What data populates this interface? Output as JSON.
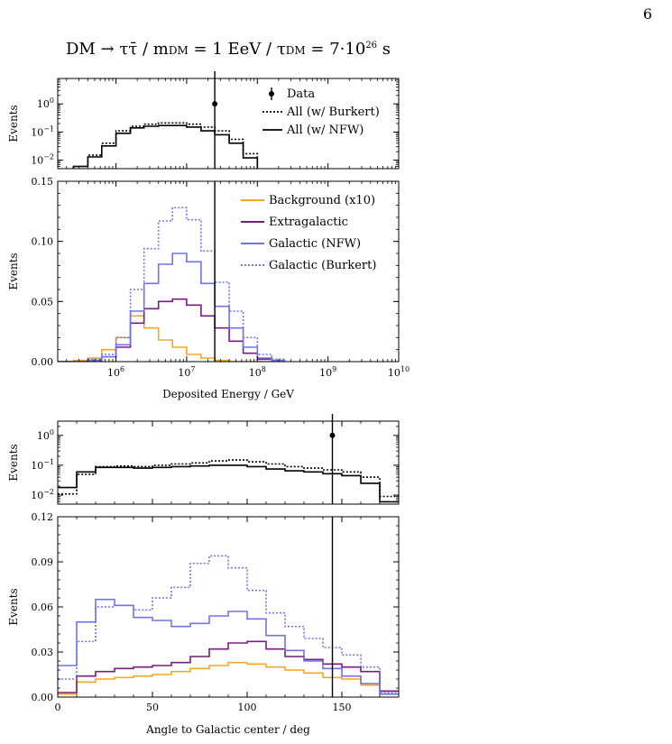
{
  "page_number": "6",
  "title": {
    "part1": "DM → ττ̄",
    "sep1": " / ",
    "m": "m",
    "m_sub": "DM",
    "m_val": " = 1 EeV",
    "sep2": " / ",
    "tau": "τ",
    "tau_sub": "DM",
    "tau_val": " = 7·10",
    "tau_exp": "26",
    "tau_unit": " s"
  },
  "colors": {
    "background": "#f5a623",
    "extragalactic": "#7b1b7e",
    "galactic": "#6f73e8",
    "data": "#000000"
  },
  "legends": {
    "top": [
      "Data",
      "All (w/ Burkert)",
      "All (w/ NFW)"
    ],
    "main": [
      "Background (x10)",
      "Extragalactic",
      "Galactic (NFW)",
      "Galactic (Burkert)"
    ]
  },
  "chart_data": [
    {
      "id": "energy-log",
      "type": "line",
      "xscale": "log",
      "yscale": "log",
      "xlim": [
        150000.0,
        10000000000.0
      ],
      "ylim": [
        0.005,
        8
      ],
      "ylabel": "Events",
      "yticks": [
        {
          "v": 1,
          "base": "10",
          "exp": "0"
        },
        {
          "v": 0.1,
          "base": "10",
          "exp": "−1"
        },
        {
          "v": 0.01,
          "base": "10",
          "exp": "−2"
        }
      ],
      "bin_edges": [
        150000,
        250000,
        400000,
        630000,
        1000000,
        1600000,
        2500000,
        4000000,
        6300000,
        10000000,
        16000000,
        25000000,
        40000000,
        63000000,
        100000000,
        160000000
      ],
      "series": [
        {
          "name": "All (w/ Burkert)",
          "style": "dotted",
          "values": [
            0.004,
            0.006,
            0.015,
            0.04,
            0.11,
            0.16,
            0.19,
            0.21,
            0.21,
            0.19,
            0.15,
            0.11,
            0.055,
            0.017,
            0.004
          ]
        },
        {
          "name": "All (w/ NFW)",
          "style": "solid",
          "values": [
            0.004,
            0.006,
            0.013,
            0.032,
            0.09,
            0.14,
            0.16,
            0.17,
            0.17,
            0.15,
            0.11,
            0.08,
            0.04,
            0.012,
            0.003
          ]
        }
      ],
      "data_points": [
        {
          "x": 25000000,
          "y": 1
        }
      ]
    },
    {
      "id": "energy-lin",
      "type": "line",
      "xscale": "log",
      "yscale": "linear",
      "xlim": [
        150000.0,
        10000000000.0
      ],
      "ylim": [
        0,
        0.15
      ],
      "xlabel": "Deposited Energy / GeV",
      "ylabel": "Events",
      "xticks": [
        {
          "v": 1000000,
          "base": "10",
          "exp": "6"
        },
        {
          "v": 10000000,
          "base": "10",
          "exp": "7"
        },
        {
          "v": 100000000,
          "base": "10",
          "exp": "8"
        },
        {
          "v": 1000000000,
          "base": "10",
          "exp": "9"
        },
        {
          "v": 10000000000,
          "base": "10",
          "exp": "10"
        }
      ],
      "yticks": [
        {
          "v": 0,
          "label": "0.00"
        },
        {
          "v": 0.05,
          "label": "0.05"
        },
        {
          "v": 0.1,
          "label": "0.10"
        },
        {
          "v": 0.15,
          "label": "0.15"
        }
      ],
      "bin_edges": [
        150000,
        250000,
        400000,
        630000,
        1000000,
        1600000,
        2500000,
        4000000,
        6300000,
        10000000,
        16000000,
        25000000,
        40000000,
        63000000,
        100000000,
        160000000,
        250000000
      ],
      "series": [
        {
          "name": "Background (x10)",
          "style": "solid",
          "values": [
            0.0,
            0.001,
            0.003,
            0.01,
            0.02,
            0.038,
            0.028,
            0.018,
            0.012,
            0.006,
            0.003,
            0.001,
            0.0,
            0.0,
            0.0,
            0.0
          ]
        },
        {
          "name": "Extragalactic",
          "style": "solid",
          "values": [
            0.0,
            0.0,
            0.001,
            0.004,
            0.012,
            0.032,
            0.044,
            0.05,
            0.052,
            0.047,
            0.038,
            0.028,
            0.017,
            0.007,
            0.002,
            0.0
          ]
        },
        {
          "name": "Galactic (NFW)",
          "style": "solid",
          "values": [
            0.0,
            0.0,
            0.001,
            0.004,
            0.014,
            0.042,
            0.065,
            0.081,
            0.09,
            0.083,
            0.065,
            0.046,
            0.028,
            0.012,
            0.003,
            0.001
          ]
        },
        {
          "name": "Galactic (Burkert)",
          "style": "dotted",
          "values": [
            0.0,
            0.0,
            0.002,
            0.006,
            0.02,
            0.06,
            0.094,
            0.117,
            0.128,
            0.118,
            0.092,
            0.066,
            0.042,
            0.02,
            0.006,
            0.002
          ]
        }
      ],
      "data_points": [
        {
          "x": 25000000,
          "y": 1
        }
      ]
    },
    {
      "id": "angle-log",
      "type": "line",
      "xscale": "linear",
      "yscale": "log",
      "xlim": [
        0,
        180
      ],
      "ylim": [
        0.005,
        3
      ],
      "ylabel": "Events",
      "yticks": [
        {
          "v": 1,
          "base": "10",
          "exp": "0"
        },
        {
          "v": 0.1,
          "base": "10",
          "exp": "−1"
        },
        {
          "v": 0.01,
          "base": "10",
          "exp": "−2"
        }
      ],
      "bin_edges": [
        0,
        10,
        20,
        30,
        40,
        50,
        60,
        70,
        80,
        90,
        100,
        110,
        120,
        130,
        140,
        150,
        160,
        170,
        180
      ],
      "series": [
        {
          "name": "All (w/ Burkert)",
          "style": "dotted",
          "values": [
            0.011,
            0.05,
            0.09,
            0.095,
            0.09,
            0.1,
            0.11,
            0.12,
            0.14,
            0.15,
            0.13,
            0.11,
            0.09,
            0.08,
            0.07,
            0.06,
            0.04,
            0.009
          ]
        },
        {
          "name": "All (w/ NFW)",
          "style": "solid",
          "values": [
            0.018,
            0.06,
            0.085,
            0.085,
            0.08,
            0.085,
            0.09,
            0.095,
            0.1,
            0.1,
            0.09,
            0.075,
            0.065,
            0.06,
            0.052,
            0.045,
            0.025,
            0.006
          ]
        }
      ],
      "data_points": [
        {
          "x": 145,
          "y": 1
        }
      ]
    },
    {
      "id": "angle-lin",
      "type": "line",
      "xscale": "linear",
      "yscale": "linear",
      "xlim": [
        0,
        180
      ],
      "ylim": [
        0,
        0.12
      ],
      "xlabel": "Angle to Galactic center / deg",
      "ylabel": "Events",
      "xticks": [
        {
          "v": 0,
          "label": "0"
        },
        {
          "v": 50,
          "label": "50"
        },
        {
          "v": 100,
          "label": "100"
        },
        {
          "v": 150,
          "label": "150"
        }
      ],
      "yticks": [
        {
          "v": 0,
          "label": "0.00"
        },
        {
          "v": 0.03,
          "label": "0.03"
        },
        {
          "v": 0.06,
          "label": "0.06"
        },
        {
          "v": 0.09,
          "label": "0.09"
        },
        {
          "v": 0.12,
          "label": "0.12"
        }
      ],
      "bin_edges": [
        0,
        10,
        20,
        30,
        40,
        50,
        60,
        70,
        80,
        90,
        100,
        110,
        120,
        130,
        140,
        150,
        160,
        170,
        180
      ],
      "series": [
        {
          "name": "Background (x10)",
          "style": "solid",
          "values": [
            0.002,
            0.01,
            0.012,
            0.013,
            0.014,
            0.015,
            0.017,
            0.019,
            0.021,
            0.023,
            0.022,
            0.02,
            0.018,
            0.016,
            0.013,
            0.012,
            0.008,
            0.002
          ]
        },
        {
          "name": "Extragalactic",
          "style": "solid",
          "values": [
            0.003,
            0.014,
            0.017,
            0.019,
            0.02,
            0.021,
            0.023,
            0.027,
            0.032,
            0.036,
            0.037,
            0.032,
            0.027,
            0.025,
            0.022,
            0.02,
            0.017,
            0.004
          ]
        },
        {
          "name": "Galactic (NFW)",
          "style": "solid",
          "values": [
            0.021,
            0.05,
            0.065,
            0.061,
            0.053,
            0.051,
            0.047,
            0.049,
            0.054,
            0.057,
            0.052,
            0.041,
            0.031,
            0.024,
            0.019,
            0.014,
            0.009,
            0.002
          ]
        },
        {
          "name": "Galactic (Burkert)",
          "style": "dotted",
          "values": [
            0.012,
            0.037,
            0.06,
            0.061,
            0.058,
            0.066,
            0.073,
            0.089,
            0.094,
            0.086,
            0.071,
            0.056,
            0.047,
            0.039,
            0.033,
            0.028,
            0.02,
            0.003
          ]
        }
      ],
      "data_points": [
        {
          "x": 145,
          "y": 1
        }
      ]
    }
  ]
}
